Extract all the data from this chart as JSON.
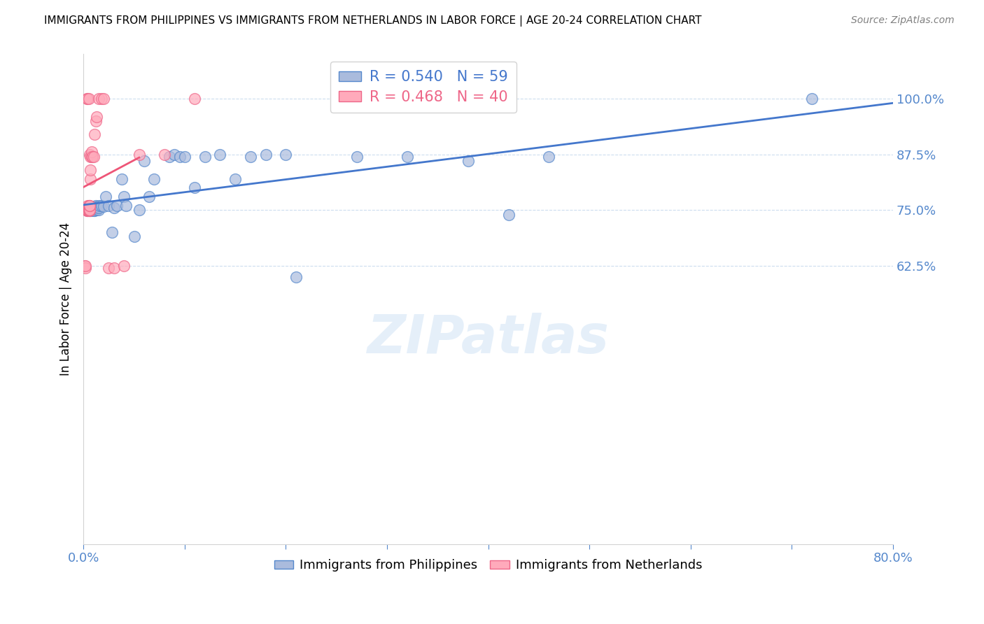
{
  "title": "IMMIGRANTS FROM PHILIPPINES VS IMMIGRANTS FROM NETHERLANDS IN LABOR FORCE | AGE 20-24 CORRELATION CHART",
  "source": "Source: ZipAtlas.com",
  "ylabel": "In Labor Force | Age 20-24",
  "xlim": [
    0.0,
    0.8
  ],
  "ylim": [
    0.0,
    1.1
  ],
  "ytick_positions": [
    0.625,
    0.75,
    0.875,
    1.0
  ],
  "ytick_labels": [
    "62.5%",
    "75.0%",
    "87.5%",
    "100.0%"
  ],
  "xtick_positions": [
    0.0,
    0.1,
    0.2,
    0.3,
    0.4,
    0.5,
    0.6,
    0.7,
    0.8
  ],
  "xtick_labels": [
    "0.0%",
    "",
    "",
    "",
    "",
    "",
    "",
    "",
    "80.0%"
  ],
  "blue_R": 0.54,
  "blue_N": 59,
  "pink_R": 0.468,
  "pink_N": 40,
  "blue_fill_color": "#AABBDD",
  "blue_edge_color": "#5588CC",
  "pink_fill_color": "#FFAABB",
  "pink_edge_color": "#EE6688",
  "blue_line_color": "#4477CC",
  "pink_line_color": "#EE5577",
  "axis_tick_color": "#5588CC",
  "watermark": "ZIPatlas",
  "blue_points_x": [
    0.003,
    0.004,
    0.005,
    0.006,
    0.006,
    0.007,
    0.007,
    0.007,
    0.007,
    0.008,
    0.008,
    0.008,
    0.009,
    0.009,
    0.01,
    0.01,
    0.01,
    0.011,
    0.011,
    0.012,
    0.013,
    0.013,
    0.014,
    0.015,
    0.015,
    0.016,
    0.018,
    0.02,
    0.022,
    0.025,
    0.028,
    0.03,
    0.033,
    0.038,
    0.04,
    0.042,
    0.05,
    0.055,
    0.06,
    0.065,
    0.07,
    0.085,
    0.09,
    0.095,
    0.1,
    0.11,
    0.12,
    0.135,
    0.15,
    0.165,
    0.18,
    0.2,
    0.21,
    0.27,
    0.32,
    0.38,
    0.42,
    0.46,
    0.72
  ],
  "blue_points_y": [
    0.75,
    0.748,
    0.752,
    0.748,
    0.75,
    0.748,
    0.75,
    0.752,
    0.755,
    0.748,
    0.75,
    0.755,
    0.75,
    0.755,
    0.748,
    0.75,
    0.758,
    0.748,
    0.755,
    0.76,
    0.75,
    0.755,
    0.758,
    0.75,
    0.755,
    0.76,
    0.76,
    0.758,
    0.78,
    0.76,
    0.7,
    0.755,
    0.76,
    0.82,
    0.78,
    0.76,
    0.69,
    0.75,
    0.86,
    0.78,
    0.82,
    0.87,
    0.875,
    0.87,
    0.87,
    0.8,
    0.87,
    0.875,
    0.82,
    0.87,
    0.875,
    0.875,
    0.6,
    0.87,
    0.87,
    0.86,
    0.74,
    0.87,
    1.0
  ],
  "pink_points_x": [
    0.001,
    0.002,
    0.002,
    0.003,
    0.003,
    0.003,
    0.004,
    0.004,
    0.004,
    0.004,
    0.004,
    0.005,
    0.005,
    0.005,
    0.005,
    0.005,
    0.006,
    0.006,
    0.006,
    0.006,
    0.006,
    0.007,
    0.007,
    0.007,
    0.008,
    0.008,
    0.009,
    0.01,
    0.011,
    0.012,
    0.013,
    0.015,
    0.018,
    0.02,
    0.025,
    0.03,
    0.04,
    0.055,
    0.08,
    0.11
  ],
  "pink_points_y": [
    0.625,
    0.62,
    0.625,
    0.748,
    0.75,
    1.0,
    0.748,
    0.75,
    0.755,
    0.76,
    1.0,
    0.748,
    0.75,
    0.755,
    0.76,
    1.0,
    0.748,
    0.75,
    0.76,
    0.76,
    0.875,
    0.82,
    0.84,
    0.87,
    0.87,
    0.88,
    0.87,
    0.87,
    0.92,
    0.95,
    0.96,
    1.0,
    1.0,
    1.0,
    0.62,
    0.62,
    0.625,
    0.875,
    0.875,
    1.0
  ]
}
